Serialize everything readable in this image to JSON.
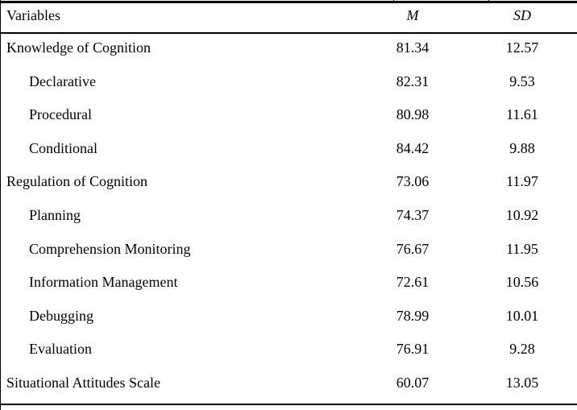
{
  "colors": {
    "background": "#ffffff",
    "text": "#000000",
    "rule": "#000000"
  },
  "table": {
    "header": {
      "variables_label": "Variables",
      "mean_label": "M",
      "sd_label": "SD"
    },
    "rows": [
      {
        "label": "Knowledge of Cognition",
        "indent": false,
        "m": "81.34",
        "sd": "12.57"
      },
      {
        "label": "Declarative",
        "indent": true,
        "m": "82.31",
        "sd": "9.53"
      },
      {
        "label": "Procedural",
        "indent": true,
        "m": "80.98",
        "sd": "11.61"
      },
      {
        "label": "Conditional",
        "indent": true,
        "m": "84.42",
        "sd": "9.88"
      },
      {
        "label": "Regulation of Cognition",
        "indent": false,
        "m": "73.06",
        "sd": "11.97"
      },
      {
        "label": "Planning",
        "indent": true,
        "m": "74.37",
        "sd": "10.92"
      },
      {
        "label": "Comprehension Monitoring",
        "indent": true,
        "m": "76.67",
        "sd": "11.95"
      },
      {
        "label": "Information Management",
        "indent": true,
        "m": "72.61",
        "sd": "10.56"
      },
      {
        "label": "Debugging",
        "indent": true,
        "m": "78.99",
        "sd": "10.01"
      },
      {
        "label": "Evaluation",
        "indent": true,
        "m": "76.91",
        "sd": "9.28"
      },
      {
        "label": "Situational Attitudes Scale",
        "indent": false,
        "m": "60.07",
        "sd": "13.05"
      }
    ]
  }
}
